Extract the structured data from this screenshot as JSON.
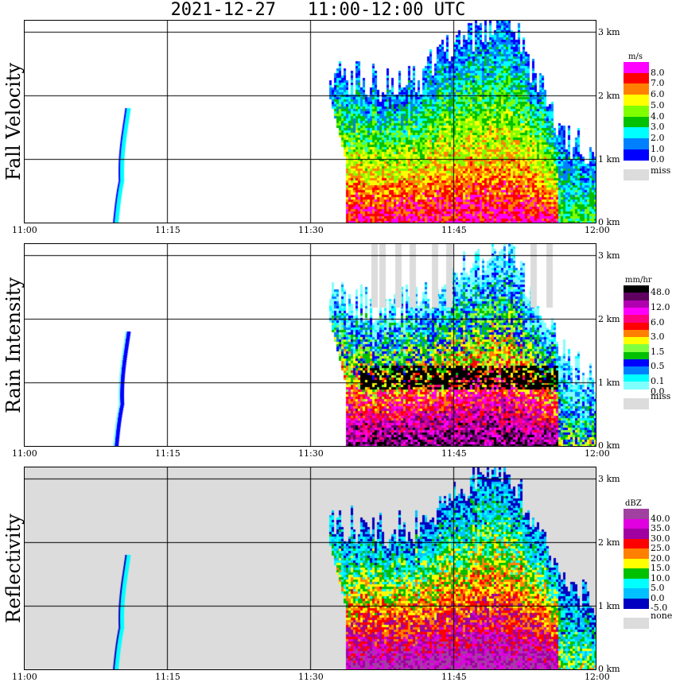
{
  "title": "2021-12-27   11:00-12:00 UTC",
  "chart_data": [
    {
      "type": "heatmap",
      "title": "Fall Velocity",
      "ylabel": "Fall Velocity",
      "x_ticks": [
        "11:00",
        "11:15",
        "11:30",
        "11:45",
        "12:00"
      ],
      "y_ticks": [
        "0 km",
        "1 km",
        "2 km",
        "3 km"
      ],
      "ylim_km": [
        0,
        3.2
      ],
      "colorbar": {
        "unit": "m/s",
        "labels": [
          "8.0",
          "7.0",
          "6.0",
          "5.0",
          "4.0",
          "3.0",
          "2.0",
          "1.0",
          "0.0"
        ],
        "colors": [
          "#ff00ff",
          "#ff0000",
          "#ff8000",
          "#ffff00",
          "#80ff00",
          "#00c000",
          "#00ffff",
          "#0080ff",
          "#0000ff"
        ],
        "missing_label": "miss"
      }
    },
    {
      "type": "heatmap",
      "title": "Rain Intensity",
      "ylabel": "Rain Intensity",
      "x_ticks": [
        "11:00",
        "11:15",
        "11:30",
        "11:45",
        "12:00"
      ],
      "y_ticks": [
        "0 km",
        "1 km",
        "2 km",
        "3 km"
      ],
      "ylim_km": [
        0,
        3.2
      ],
      "colorbar": {
        "unit": "mm/hr",
        "labels": [
          "48.0",
          "12.0",
          "6.0",
          "3.0",
          "1.5",
          "0.5",
          "0.1",
          "0.0"
        ],
        "colors": [
          "#000000",
          "#600060",
          "#b000b0",
          "#ff00ff",
          "#ff0080",
          "#ff0000",
          "#ff8000",
          "#ffff00",
          "#80ff40",
          "#00c000",
          "#0000ff",
          "#0080ff",
          "#00ffff",
          "#80ffff"
        ],
        "missing_label": "miss"
      }
    },
    {
      "type": "heatmap",
      "title": "Reflectivity",
      "ylabel": "Reflectivity",
      "x_ticks": [
        "11:00",
        "11:15",
        "11:30",
        "11:45",
        "12:00"
      ],
      "y_ticks": [
        "0 km",
        "1 km",
        "2 km",
        "3 km"
      ],
      "ylim_km": [
        0,
        3.2
      ],
      "colorbar": {
        "unit": "dBZ",
        "labels": [
          "40.0",
          "35.0",
          "30.0",
          "25.0",
          "20.0",
          "15.0",
          "10.0",
          "5.0",
          "0.0",
          "-5.0"
        ],
        "colors": [
          "#a040a0",
          "#e000e0",
          "#a000a0",
          "#ff0000",
          "#ff8000",
          "#ffff00",
          "#00c000",
          "#00ffff",
          "#00c0ff",
          "#0000c0"
        ],
        "missing_label": "none"
      }
    }
  ],
  "echo_top_km_approx": {
    "time": [
      "11:33",
      "11:36",
      "11:39",
      "11:42",
      "11:45",
      "11:48",
      "11:51",
      "11:54",
      "11:57",
      "12:00"
    ],
    "value": [
      2.3,
      2.3,
      2.2,
      2.3,
      2.7,
      3.0,
      3.2,
      2.3,
      1.3,
      1.0
    ]
  }
}
